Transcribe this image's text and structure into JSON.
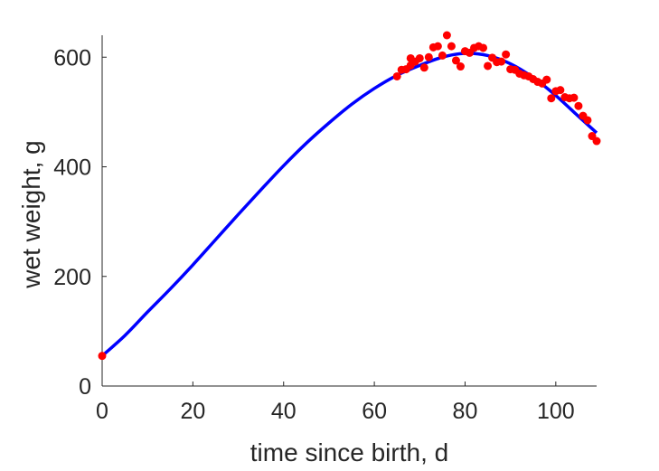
{
  "chart_data": {
    "type": "scatter",
    "title": "",
    "xlabel": "time since birth, d",
    "ylabel": "wet weight, g",
    "xlim": [
      0,
      109
    ],
    "ylim": [
      0,
      640
    ],
    "xticks": [
      0,
      20,
      40,
      60,
      80,
      100
    ],
    "yticks": [
      0,
      200,
      400,
      600
    ],
    "grid": false,
    "series": [
      {
        "kind": "line",
        "color": "#0000ff",
        "x": [
          0,
          5,
          10,
          15,
          20,
          25,
          30,
          35,
          40,
          45,
          50,
          55,
          60,
          65,
          70,
          75,
          80,
          85,
          90,
          95,
          100,
          105,
          109
        ],
        "y": [
          55,
          92,
          135,
          177,
          221,
          267,
          313,
          358,
          402,
          443,
          480,
          514,
          543,
          567,
          585,
          600,
          607,
          603,
          588,
          563,
          530,
          492,
          462
        ]
      },
      {
        "kind": "scatter",
        "color": "#ff0000",
        "x": [
          0,
          65,
          66,
          67,
          68,
          68,
          69,
          70,
          71,
          72,
          73,
          74,
          75,
          76,
          77,
          78,
          79,
          80,
          81,
          82,
          83,
          84,
          85,
          86,
          87,
          88,
          89,
          90,
          91,
          92,
          93,
          94,
          95,
          96,
          97,
          98,
          99,
          100,
          101,
          102,
          103,
          104,
          105,
          106,
          107,
          108,
          109
        ],
        "y": [
          55,
          565,
          577,
          578,
          598,
          585,
          592,
          598,
          581,
          600,
          618,
          620,
          603,
          640,
          620,
          594,
          583,
          611,
          608,
          617,
          620,
          617,
          584,
          599,
          591,
          592,
          605,
          578,
          577,
          570,
          567,
          565,
          560,
          555,
          552,
          559,
          525,
          538,
          540,
          527,
          525,
          526,
          511,
          493,
          485,
          456,
          447
        ]
      }
    ]
  }
}
